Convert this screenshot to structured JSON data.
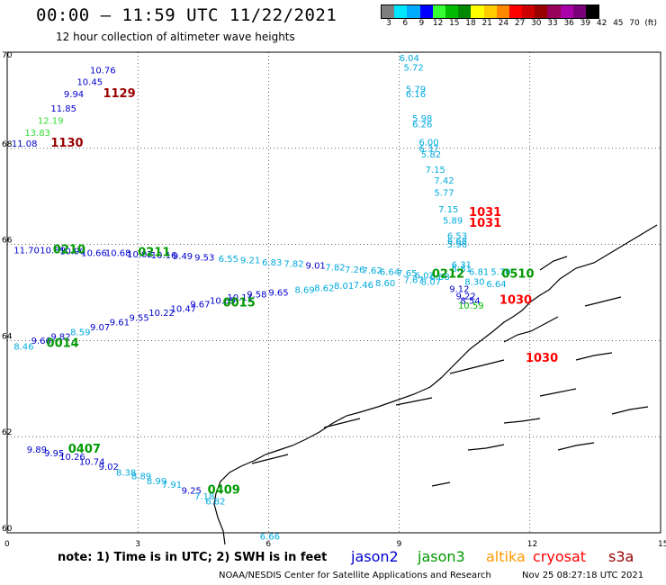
{
  "title": "00:00 – 11:59 UTC 11/22/2021",
  "subtitle": "12 hour collection of altimeter wave heights",
  "colorbar": {
    "colors": [
      "#7f7f7f",
      "#00e5ff",
      "#00aaff",
      "#0000ff",
      "#33ff33",
      "#00bb00",
      "#008800",
      "#ffff00",
      "#ffcc00",
      "#ff8800",
      "#ff0000",
      "#cc0000",
      "#990000",
      "#99005c",
      "#aa00aa",
      "#7a007a",
      "#000000"
    ],
    "labels": [
      "3",
      "6",
      "9",
      "12",
      "15",
      "18",
      "21",
      "24",
      "27",
      "30",
      "33",
      "36",
      "39",
      "42",
      "45",
      "70",
      "(ft)"
    ]
  },
  "axes": {
    "x_ticks": [
      "0",
      "3",
      "6",
      "9",
      "12",
      "15"
    ],
    "y_ticks": [
      "60",
      "62",
      "64",
      "66",
      "68",
      "70"
    ]
  },
  "legend": {
    "note": "note:  1) Time is in UTC;  2) SWH is in feet",
    "satellites": [
      {
        "name": "jason2",
        "color": "#0000cc"
      },
      {
        "name": "jason3",
        "color": "#009900"
      },
      {
        "name": "altika",
        "color": "#ff9900"
      },
      {
        "name": "cryosat",
        "color": "#ff0000"
      },
      {
        "name": "s3a",
        "color": "#990000"
      }
    ]
  },
  "credit": "NOAA/NESDIS Center for Satellite Applications and Research",
  "timestamp": "Nov 25 08:27:18 UTC 2021",
  "observations": [
    {
      "lon": 1.9,
      "lat": 69.75,
      "t": "10.76",
      "c": "#0000cc"
    },
    {
      "lon": 1.6,
      "lat": 69.5,
      "t": "10.45",
      "c": "#0000cc"
    },
    {
      "lon": 1.3,
      "lat": 69.25,
      "t": "9.94",
      "c": "#0000cc"
    },
    {
      "lon": 1.0,
      "lat": 68.95,
      "t": "11.85",
      "c": "#0000cc"
    },
    {
      "lon": 0.7,
      "lat": 68.7,
      "t": "12.19",
      "c": "#33dd33"
    },
    {
      "lon": 0.4,
      "lat": 68.45,
      "t": "13.83",
      "c": "#33dd33"
    },
    {
      "lon": 0.1,
      "lat": 68.22,
      "t": "11.08",
      "c": "#0000cc"
    },
    {
      "lon": 2.2,
      "lat": 69.25,
      "t": "1129",
      "c": "#990000",
      "big": true
    },
    {
      "lon": 1.0,
      "lat": 68.22,
      "t": "1130",
      "c": "#990000",
      "big": true
    },
    {
      "lon": 9.0,
      "lat": 70.0,
      "t": "6.04",
      "c": "#00aadd"
    },
    {
      "lon": 9.1,
      "lat": 69.8,
      "t": "5.72",
      "c": "#00aadd"
    },
    {
      "lon": 9.15,
      "lat": 69.35,
      "t": "5.79",
      "c": "#00aadd"
    },
    {
      "lon": 9.15,
      "lat": 69.25,
      "t": "6.16",
      "c": "#00aadd"
    },
    {
      "lon": 9.3,
      "lat": 68.75,
      "t": "5.98",
      "c": "#00aadd"
    },
    {
      "lon": 9.3,
      "lat": 68.62,
      "t": "6.26",
      "c": "#00aadd"
    },
    {
      "lon": 9.45,
      "lat": 68.25,
      "t": "6.00",
      "c": "#00aadd"
    },
    {
      "lon": 9.45,
      "lat": 68.12,
      "t": "6.37",
      "c": "#00aadd"
    },
    {
      "lon": 9.5,
      "lat": 68.0,
      "t": "5.82",
      "c": "#00aadd"
    },
    {
      "lon": 9.6,
      "lat": 67.68,
      "t": "7.15",
      "c": "#00aadd"
    },
    {
      "lon": 9.8,
      "lat": 67.45,
      "t": "7.42",
      "c": "#00aadd"
    },
    {
      "lon": 9.8,
      "lat": 67.2,
      "t": "5.77",
      "c": "#00aadd"
    },
    {
      "lon": 9.9,
      "lat": 66.85,
      "t": "7.15",
      "c": "#00aadd"
    },
    {
      "lon": 10.0,
      "lat": 66.62,
      "t": "5.89",
      "c": "#00aadd"
    },
    {
      "lon": 10.1,
      "lat": 66.3,
      "t": "6.53",
      "c": "#00aadd"
    },
    {
      "lon": 10.1,
      "lat": 66.2,
      "t": "6.68",
      "c": "#00aadd"
    },
    {
      "lon": 10.1,
      "lat": 66.12,
      "t": "5.96",
      "c": "#00aadd"
    },
    {
      "lon": 10.2,
      "lat": 65.7,
      "t": "6.31",
      "c": "#00aadd"
    },
    {
      "lon": 10.2,
      "lat": 65.62,
      "t": "5.81",
      "c": "#00aadd"
    },
    {
      "lon": 10.6,
      "lat": 66.78,
      "t": "1031",
      "c": "#ff0000",
      "big": true
    },
    {
      "lon": 10.6,
      "lat": 66.55,
      "t": "1031",
      "c": "#ff0000",
      "big": true
    },
    {
      "lon": 0.15,
      "lat": 66.0,
      "t": "11.70",
      "c": "#0000cc"
    },
    {
      "lon": 0.75,
      "lat": 66.0,
      "t": "10.89",
      "c": "#0000cc"
    },
    {
      "lon": 1.2,
      "lat": 65.98,
      "t": "10.90",
      "c": "#0000cc"
    },
    {
      "lon": 1.7,
      "lat": 65.95,
      "t": "10.66",
      "c": "#0000cc"
    },
    {
      "lon": 2.25,
      "lat": 65.95,
      "t": "10.68",
      "c": "#0000cc"
    },
    {
      "lon": 2.75,
      "lat": 65.92,
      "t": "10.02",
      "c": "#0000cc"
    },
    {
      "lon": 3.3,
      "lat": 65.9,
      "t": "10.16",
      "c": "#0000cc"
    },
    {
      "lon": 3.8,
      "lat": 65.88,
      "t": "9.49",
      "c": "#0000cc"
    },
    {
      "lon": 4.3,
      "lat": 65.85,
      "t": "9.53",
      "c": "#0000cc"
    },
    {
      "lon": 4.85,
      "lat": 65.82,
      "t": "6.55",
      "c": "#00aadd"
    },
    {
      "lon": 5.35,
      "lat": 65.8,
      "t": "9.21",
      "c": "#00aadd"
    },
    {
      "lon": 5.85,
      "lat": 65.75,
      "t": "6.83",
      "c": "#00aadd"
    },
    {
      "lon": 6.35,
      "lat": 65.72,
      "t": "7.82",
      "c": "#00aadd"
    },
    {
      "lon": 6.85,
      "lat": 65.68,
      "t": "9.01",
      "c": "#0000cc"
    },
    {
      "lon": 7.3,
      "lat": 65.65,
      "t": "7.82",
      "c": "#00aadd"
    },
    {
      "lon": 7.75,
      "lat": 65.6,
      "t": "7.26",
      "c": "#00aadd"
    },
    {
      "lon": 8.15,
      "lat": 65.58,
      "t": "7.62",
      "c": "#00aadd"
    },
    {
      "lon": 8.55,
      "lat": 65.55,
      "t": "6.64",
      "c": "#00aadd"
    },
    {
      "lon": 8.95,
      "lat": 65.52,
      "t": "7.65",
      "c": "#00aadd"
    },
    {
      "lon": 9.35,
      "lat": 65.48,
      "t": "6.02",
      "c": "#00aadd"
    },
    {
      "lon": 9.7,
      "lat": 65.45,
      "t": "6.68",
      "c": "#00aadd"
    },
    {
      "lon": 10.6,
      "lat": 65.55,
      "t": "6.81",
      "c": "#00aadd"
    },
    {
      "lon": 11.1,
      "lat": 65.55,
      "t": "5.70",
      "c": "#00aadd"
    },
    {
      "lon": 11.0,
      "lat": 65.3,
      "t": "6.64",
      "c": "#00aadd"
    },
    {
      "lon": 10.5,
      "lat": 65.35,
      "t": "8.30",
      "c": "#00aadd"
    },
    {
      "lon": 9.1,
      "lat": 65.38,
      "t": "7.67",
      "c": "#00aadd"
    },
    {
      "lon": 9.5,
      "lat": 65.35,
      "t": "8.07",
      "c": "#00aadd"
    },
    {
      "lon": 10.15,
      "lat": 65.2,
      "t": "9.12",
      "c": "#0000cc"
    },
    {
      "lon": 1.05,
      "lat": 66.0,
      "t": "0210",
      "c": "#009900",
      "big": true
    },
    {
      "lon": 3.0,
      "lat": 65.95,
      "t": "0211",
      "c": "#009900",
      "big": true
    },
    {
      "lon": 9.75,
      "lat": 65.5,
      "t": "0212",
      "c": "#009900",
      "big": true
    },
    {
      "lon": 11.35,
      "lat": 65.5,
      "t": "0510",
      "c": "#009900",
      "big": true
    },
    {
      "lon": 0.15,
      "lat": 64.0,
      "t": "8.46",
      "c": "#00aadd"
    },
    {
      "lon": 0.55,
      "lat": 64.12,
      "t": "9.66",
      "c": "#0000cc"
    },
    {
      "lon": 1.0,
      "lat": 64.2,
      "t": "9.82",
      "c": "#0000cc"
    },
    {
      "lon": 1.45,
      "lat": 64.3,
      "t": "8.59",
      "c": "#00aadd"
    },
    {
      "lon": 1.9,
      "lat": 64.4,
      "t": "9.07",
      "c": "#0000cc"
    },
    {
      "lon": 2.35,
      "lat": 64.5,
      "t": "9.61",
      "c": "#0000cc"
    },
    {
      "lon": 2.8,
      "lat": 64.6,
      "t": "9.55",
      "c": "#0000cc"
    },
    {
      "lon": 3.25,
      "lat": 64.7,
      "t": "10.22",
      "c": "#0000cc"
    },
    {
      "lon": 3.75,
      "lat": 64.78,
      "t": "10.47",
      "c": "#0000cc"
    },
    {
      "lon": 4.2,
      "lat": 64.88,
      "t": "9.67",
      "c": "#0000cc"
    },
    {
      "lon": 4.65,
      "lat": 64.95,
      "t": "10.65",
      "c": "#0000cc"
    },
    {
      "lon": 5.05,
      "lat": 65.02,
      "t": "10.11",
      "c": "#0000cc"
    },
    {
      "lon": 5.5,
      "lat": 65.08,
      "t": "9.58",
      "c": "#0000cc"
    },
    {
      "lon": 6.0,
      "lat": 65.12,
      "t": "9.65",
      "c": "#0000cc"
    },
    {
      "lon": 6.6,
      "lat": 65.18,
      "t": "8.69",
      "c": "#00aadd"
    },
    {
      "lon": 7.05,
      "lat": 65.22,
      "t": "8.62",
      "c": "#00aadd"
    },
    {
      "lon": 7.5,
      "lat": 65.26,
      "t": "8.01",
      "c": "#00aadd"
    },
    {
      "lon": 7.95,
      "lat": 65.28,
      "t": "7.46",
      "c": "#00aadd"
    },
    {
      "lon": 8.45,
      "lat": 65.32,
      "t": "8.60",
      "c": "#00aadd"
    },
    {
      "lon": 10.3,
      "lat": 65.05,
      "t": "9.22",
      "c": "#0000cc"
    },
    {
      "lon": 10.4,
      "lat": 64.95,
      "t": "8.54",
      "c": "#0000cc"
    },
    {
      "lon": 10.35,
      "lat": 64.85,
      "t": "10.59",
      "c": "#00bb00"
    },
    {
      "lon": 0.9,
      "lat": 64.05,
      "t": "0014",
      "c": "#009900",
      "big": true
    },
    {
      "lon": 4.95,
      "lat": 64.9,
      "t": "0015",
      "c": "#009900",
      "big": true
    },
    {
      "lon": 11.3,
      "lat": 64.95,
      "t": "1030",
      "c": "#ff0000",
      "big": true
    },
    {
      "lon": 11.9,
      "lat": 63.75,
      "t": "1030",
      "c": "#ff0000",
      "big": true
    },
    {
      "lon": 0.45,
      "lat": 61.85,
      "t": "9.89",
      "c": "#0000cc"
    },
    {
      "lon": 0.85,
      "lat": 61.78,
      "t": "9.95",
      "c": "#0000cc"
    },
    {
      "lon": 1.2,
      "lat": 61.7,
      "t": "10.26",
      "c": "#0000cc"
    },
    {
      "lon": 1.65,
      "lat": 61.6,
      "t": "10.74",
      "c": "#0000cc"
    },
    {
      "lon": 2.1,
      "lat": 61.5,
      "t": "9.02",
      "c": "#0000cc"
    },
    {
      "lon": 2.5,
      "lat": 61.38,
      "t": "8.38",
      "c": "#00aadd"
    },
    {
      "lon": 2.85,
      "lat": 61.3,
      "t": "8.89",
      "c": "#00aadd"
    },
    {
      "lon": 3.2,
      "lat": 61.2,
      "t": "8.99",
      "c": "#00aadd"
    },
    {
      "lon": 3.55,
      "lat": 61.12,
      "t": "7.91",
      "c": "#00aadd"
    },
    {
      "lon": 4.0,
      "lat": 61.0,
      "t": "9.25",
      "c": "#0000cc"
    },
    {
      "lon": 4.3,
      "lat": 60.88,
      "t": "7.18",
      "c": "#00aadd"
    },
    {
      "lon": 4.55,
      "lat": 60.78,
      "t": "6.82",
      "c": "#00aadd"
    },
    {
      "lon": 5.8,
      "lat": 60.05,
      "t": "6.66",
      "c": "#00aadd"
    },
    {
      "lon": 1.4,
      "lat": 61.85,
      "t": "0407",
      "c": "#009900",
      "big": true
    },
    {
      "lon": 4.6,
      "lat": 61.0,
      "t": "0409",
      "c": "#009900",
      "big": true
    }
  ]
}
